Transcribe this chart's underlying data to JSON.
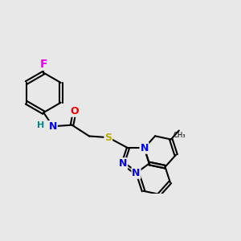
{
  "bg": "#e8e8e8",
  "bc": "#000000",
  "atom_colors": {
    "F": "#ee00ee",
    "N": "#0000ee",
    "O": "#ee0000",
    "S": "#bbaa00",
    "H": "#008888"
  },
  "lw": 1.5,
  "fs": 9,
  "dbl_off": 0.055
}
